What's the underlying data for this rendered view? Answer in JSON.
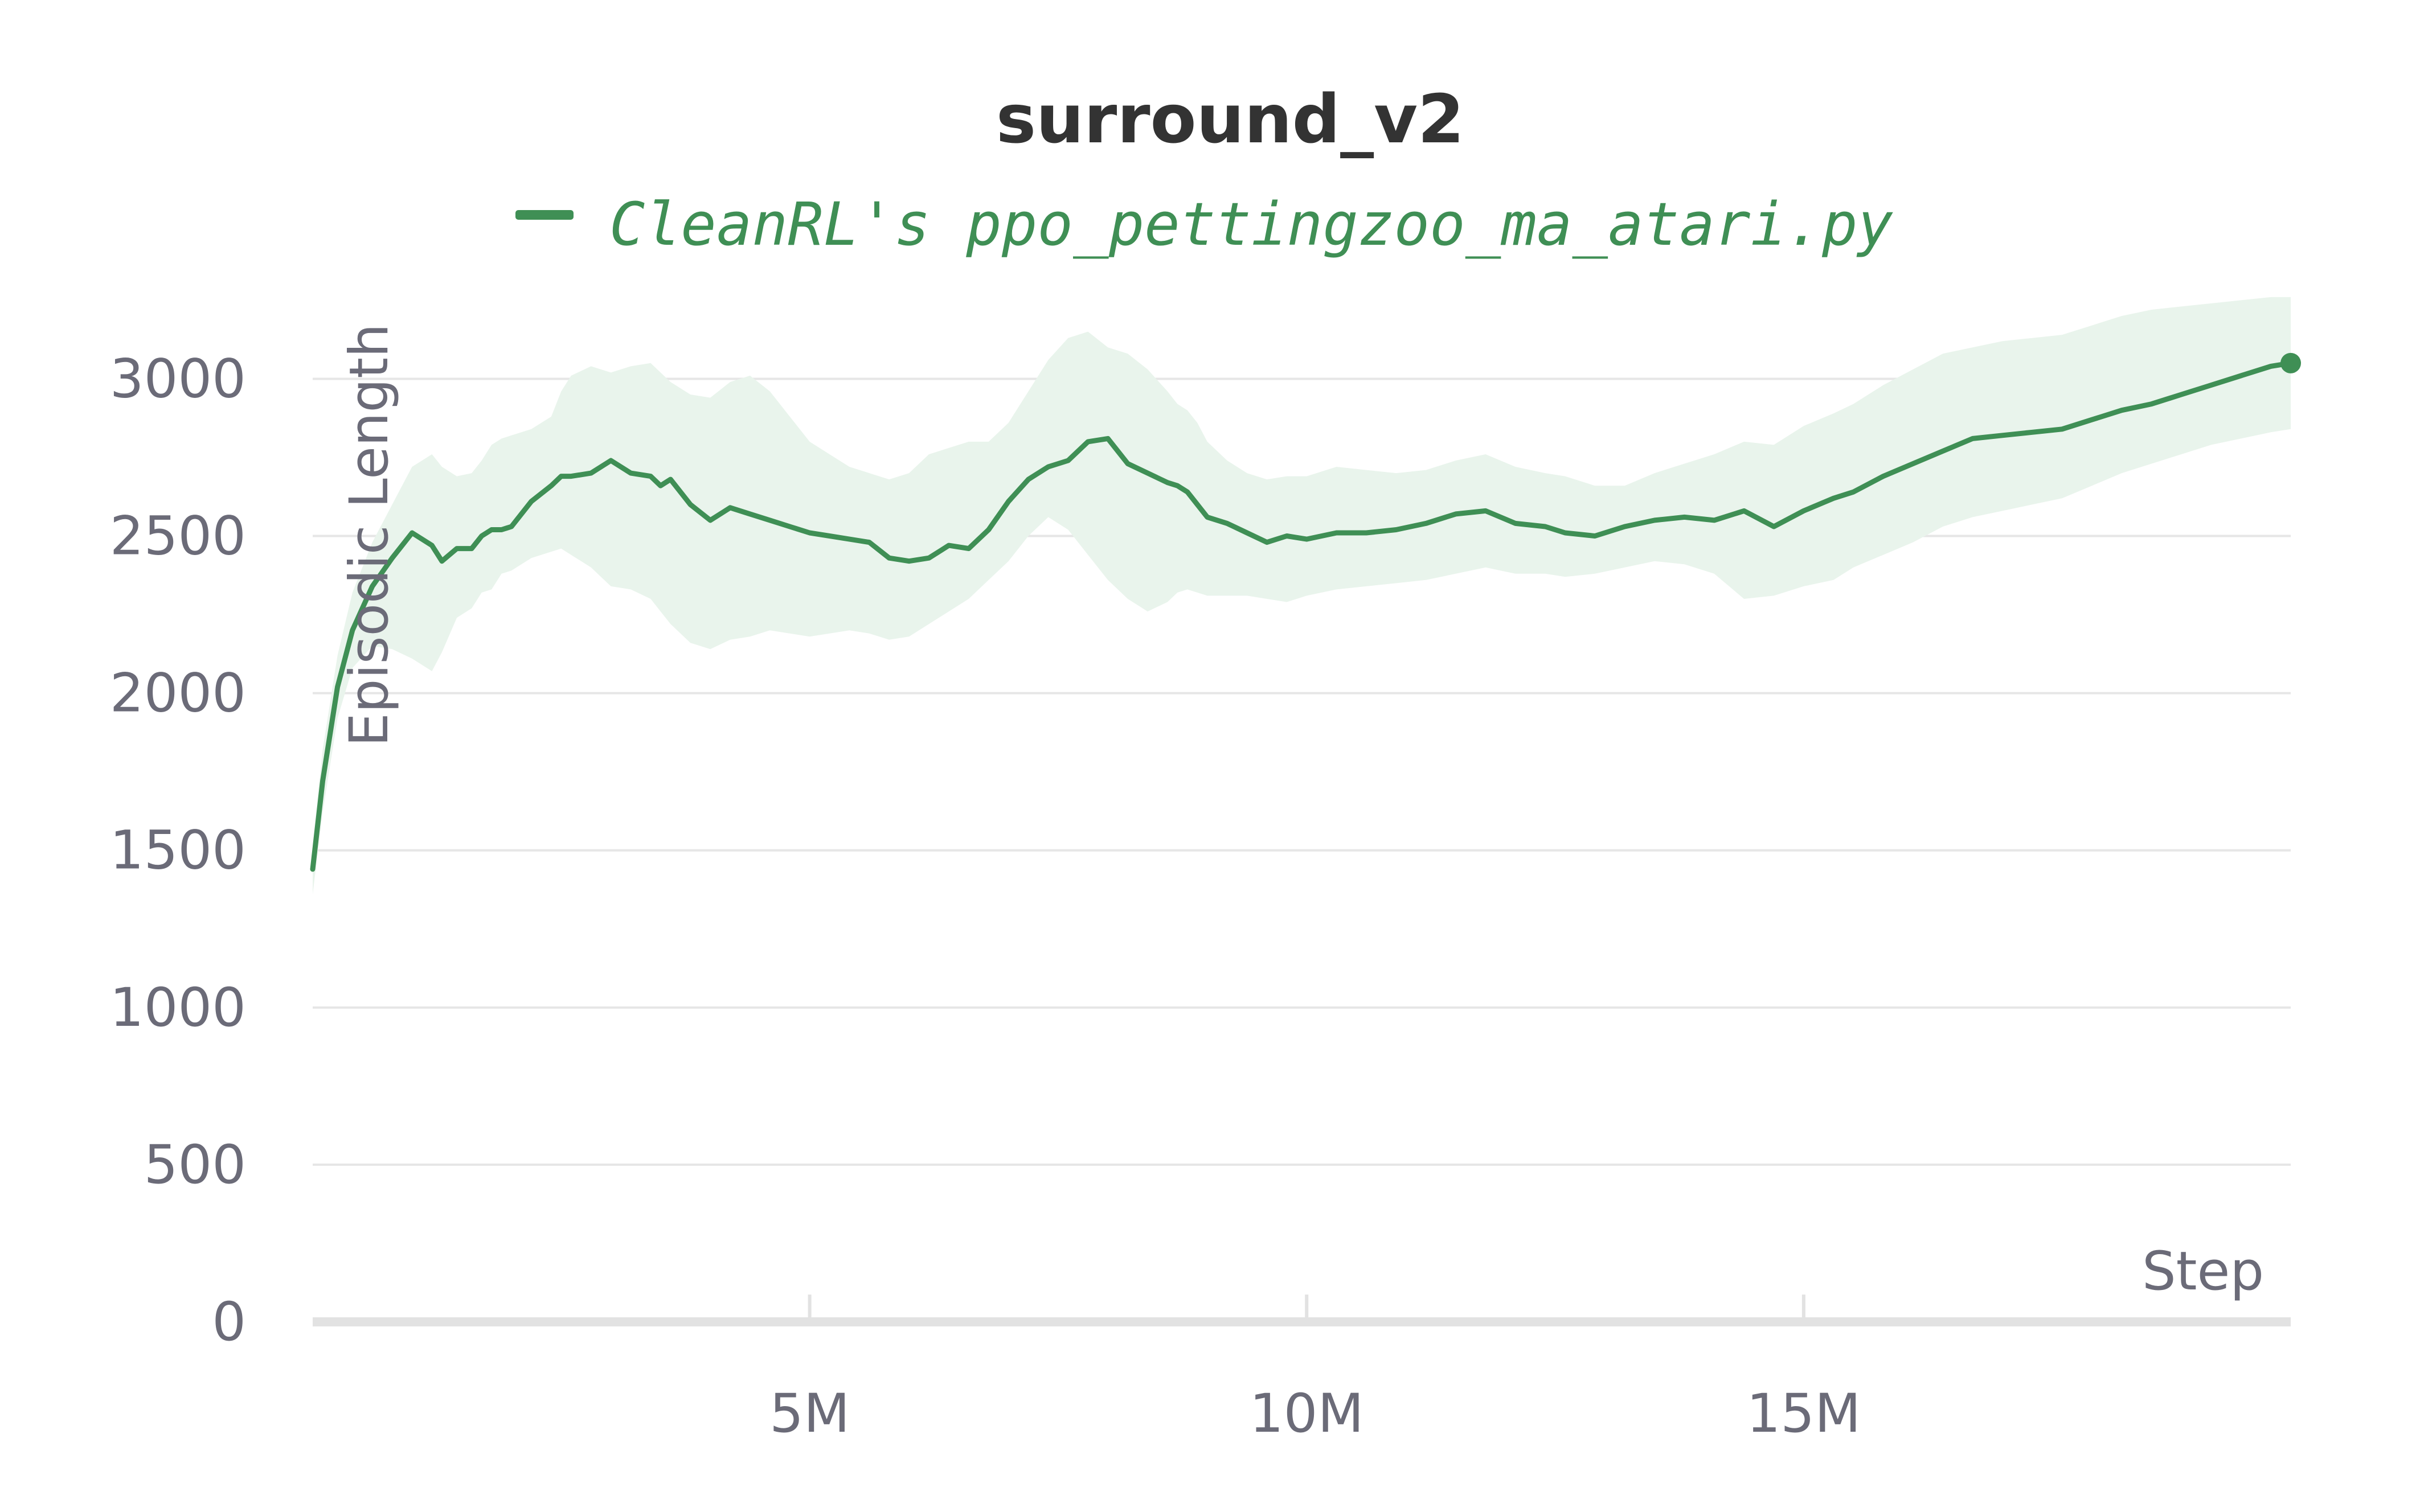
{
  "chart_data": {
    "type": "line",
    "title": "surround_v2",
    "xlabel": "Step",
    "ylabel": "Episodic Length",
    "xlim": [
      0,
      19900000
    ],
    "ylim": [
      0,
      3200
    ],
    "xticks": [
      {
        "value": 5000000,
        "label": "5M"
      },
      {
        "value": 10000000,
        "label": "10M"
      },
      {
        "value": 15000000,
        "label": "15M"
      }
    ],
    "yticks": [
      {
        "value": 0,
        "label": "0"
      },
      {
        "value": 500,
        "label": "500"
      },
      {
        "value": 1000,
        "label": "1000"
      },
      {
        "value": 1500,
        "label": "1500"
      },
      {
        "value": 2000,
        "label": "2000"
      },
      {
        "value": 2500,
        "label": "2500"
      },
      {
        "value": 3000,
        "label": "3000"
      }
    ],
    "grid": true,
    "legend_position": "top-center",
    "series": [
      {
        "name": "CleanRL's ppo_pettingzoo_ma_atari.py",
        "color": "#3f8f55",
        "band_color": "#e9f4ec",
        "x": [
          0,
          100000,
          250000,
          400000,
          600000,
          800000,
          1000000,
          1200000,
          1300000,
          1450000,
          1600000,
          1700000,
          1800000,
          1900000,
          2000000,
          2200000,
          2400000,
          2500000,
          2600000,
          2800000,
          3000000,
          3200000,
          3400000,
          3500000,
          3600000,
          3800000,
          4000000,
          4200000,
          4400000,
          4600000,
          4800000,
          5000000,
          5200000,
          5400000,
          5600000,
          5800000,
          6000000,
          6200000,
          6400000,
          6600000,
          6800000,
          7000000,
          7200000,
          7400000,
          7600000,
          7800000,
          8000000,
          8200000,
          8400000,
          8600000,
          8700000,
          8800000,
          8900000,
          9000000,
          9200000,
          9400000,
          9600000,
          9800000,
          10000000,
          10300000,
          10600000,
          10900000,
          11200000,
          11500000,
          11800000,
          12100000,
          12400000,
          12600000,
          12900000,
          13200000,
          13500000,
          13800000,
          14100000,
          14400000,
          14700000,
          15000000,
          15300000,
          15500000,
          15800000,
          16100000,
          16400000,
          16700000,
          17000000,
          17300000,
          17600000,
          17900000,
          18200000,
          18500000,
          18800000,
          19100000,
          19400000,
          19700000,
          19900000
        ],
        "y": [
          1440,
          1720,
          2020,
          2200,
          2340,
          2430,
          2510,
          2470,
          2420,
          2460,
          2460,
          2500,
          2520,
          2520,
          2530,
          2610,
          2660,
          2690,
          2690,
          2700,
          2740,
          2700,
          2690,
          2660,
          2680,
          2600,
          2550,
          2590,
          2570,
          2550,
          2530,
          2510,
          2500,
          2490,
          2480,
          2430,
          2420,
          2430,
          2470,
          2460,
          2520,
          2610,
          2680,
          2720,
          2740,
          2800,
          2810,
          2730,
          2700,
          2670,
          2660,
          2640,
          2600,
          2560,
          2540,
          2510,
          2480,
          2500,
          2490,
          2510,
          2510,
          2520,
          2540,
          2570,
          2580,
          2540,
          2530,
          2510,
          2500,
          2530,
          2550,
          2560,
          2550,
          2580,
          2530,
          2580,
          2620,
          2640,
          2690,
          2730,
          2770,
          2810,
          2820,
          2830,
          2840,
          2870,
          2900,
          2920,
          2950,
          2980,
          3010,
          3040,
          3050
        ],
        "y_low": [
          1360,
          1620,
          1920,
          2080,
          2150,
          2140,
          2110,
          2070,
          2130,
          2240,
          2270,
          2320,
          2330,
          2380,
          2390,
          2430,
          2450,
          2460,
          2440,
          2400,
          2340,
          2330,
          2300,
          2260,
          2220,
          2160,
          2140,
          2170,
          2180,
          2200,
          2190,
          2180,
          2190,
          2200,
          2190,
          2170,
          2180,
          2220,
          2260,
          2300,
          2360,
          2420,
          2500,
          2560,
          2520,
          2440,
          2360,
          2300,
          2260,
          2290,
          2320,
          2330,
          2320,
          2310,
          2310,
          2310,
          2300,
          2290,
          2310,
          2330,
          2340,
          2350,
          2360,
          2380,
          2400,
          2380,
          2380,
          2370,
          2380,
          2400,
          2420,
          2410,
          2380,
          2300,
          2310,
          2340,
          2360,
          2400,
          2440,
          2480,
          2530,
          2560,
          2580,
          2600,
          2620,
          2660,
          2700,
          2730,
          2760,
          2790,
          2810,
          2830,
          2840
        ],
        "y_high": [
          1520,
          1820,
          2120,
          2320,
          2480,
          2600,
          2720,
          2760,
          2720,
          2690,
          2700,
          2740,
          2790,
          2810,
          2820,
          2840,
          2880,
          2960,
          3010,
          3040,
          3020,
          3040,
          3050,
          3020,
          2990,
          2950,
          2940,
          2990,
          3010,
          2960,
          2880,
          2800,
          2760,
          2720,
          2700,
          2680,
          2700,
          2760,
          2780,
          2800,
          2800,
          2860,
          2960,
          3060,
          3130,
          3150,
          3100,
          3080,
          3030,
          2960,
          2920,
          2900,
          2860,
          2800,
          2740,
          2700,
          2680,
          2690,
          2690,
          2720,
          2710,
          2700,
          2710,
          2740,
          2760,
          2720,
          2700,
          2690,
          2660,
          2660,
          2700,
          2730,
          2760,
          2800,
          2790,
          2850,
          2890,
          2920,
          2980,
          3030,
          3080,
          3100,
          3120,
          3130,
          3140,
          3170,
          3200,
          3220,
          3230,
          3240,
          3250,
          3260,
          3260
        ]
      }
    ]
  }
}
